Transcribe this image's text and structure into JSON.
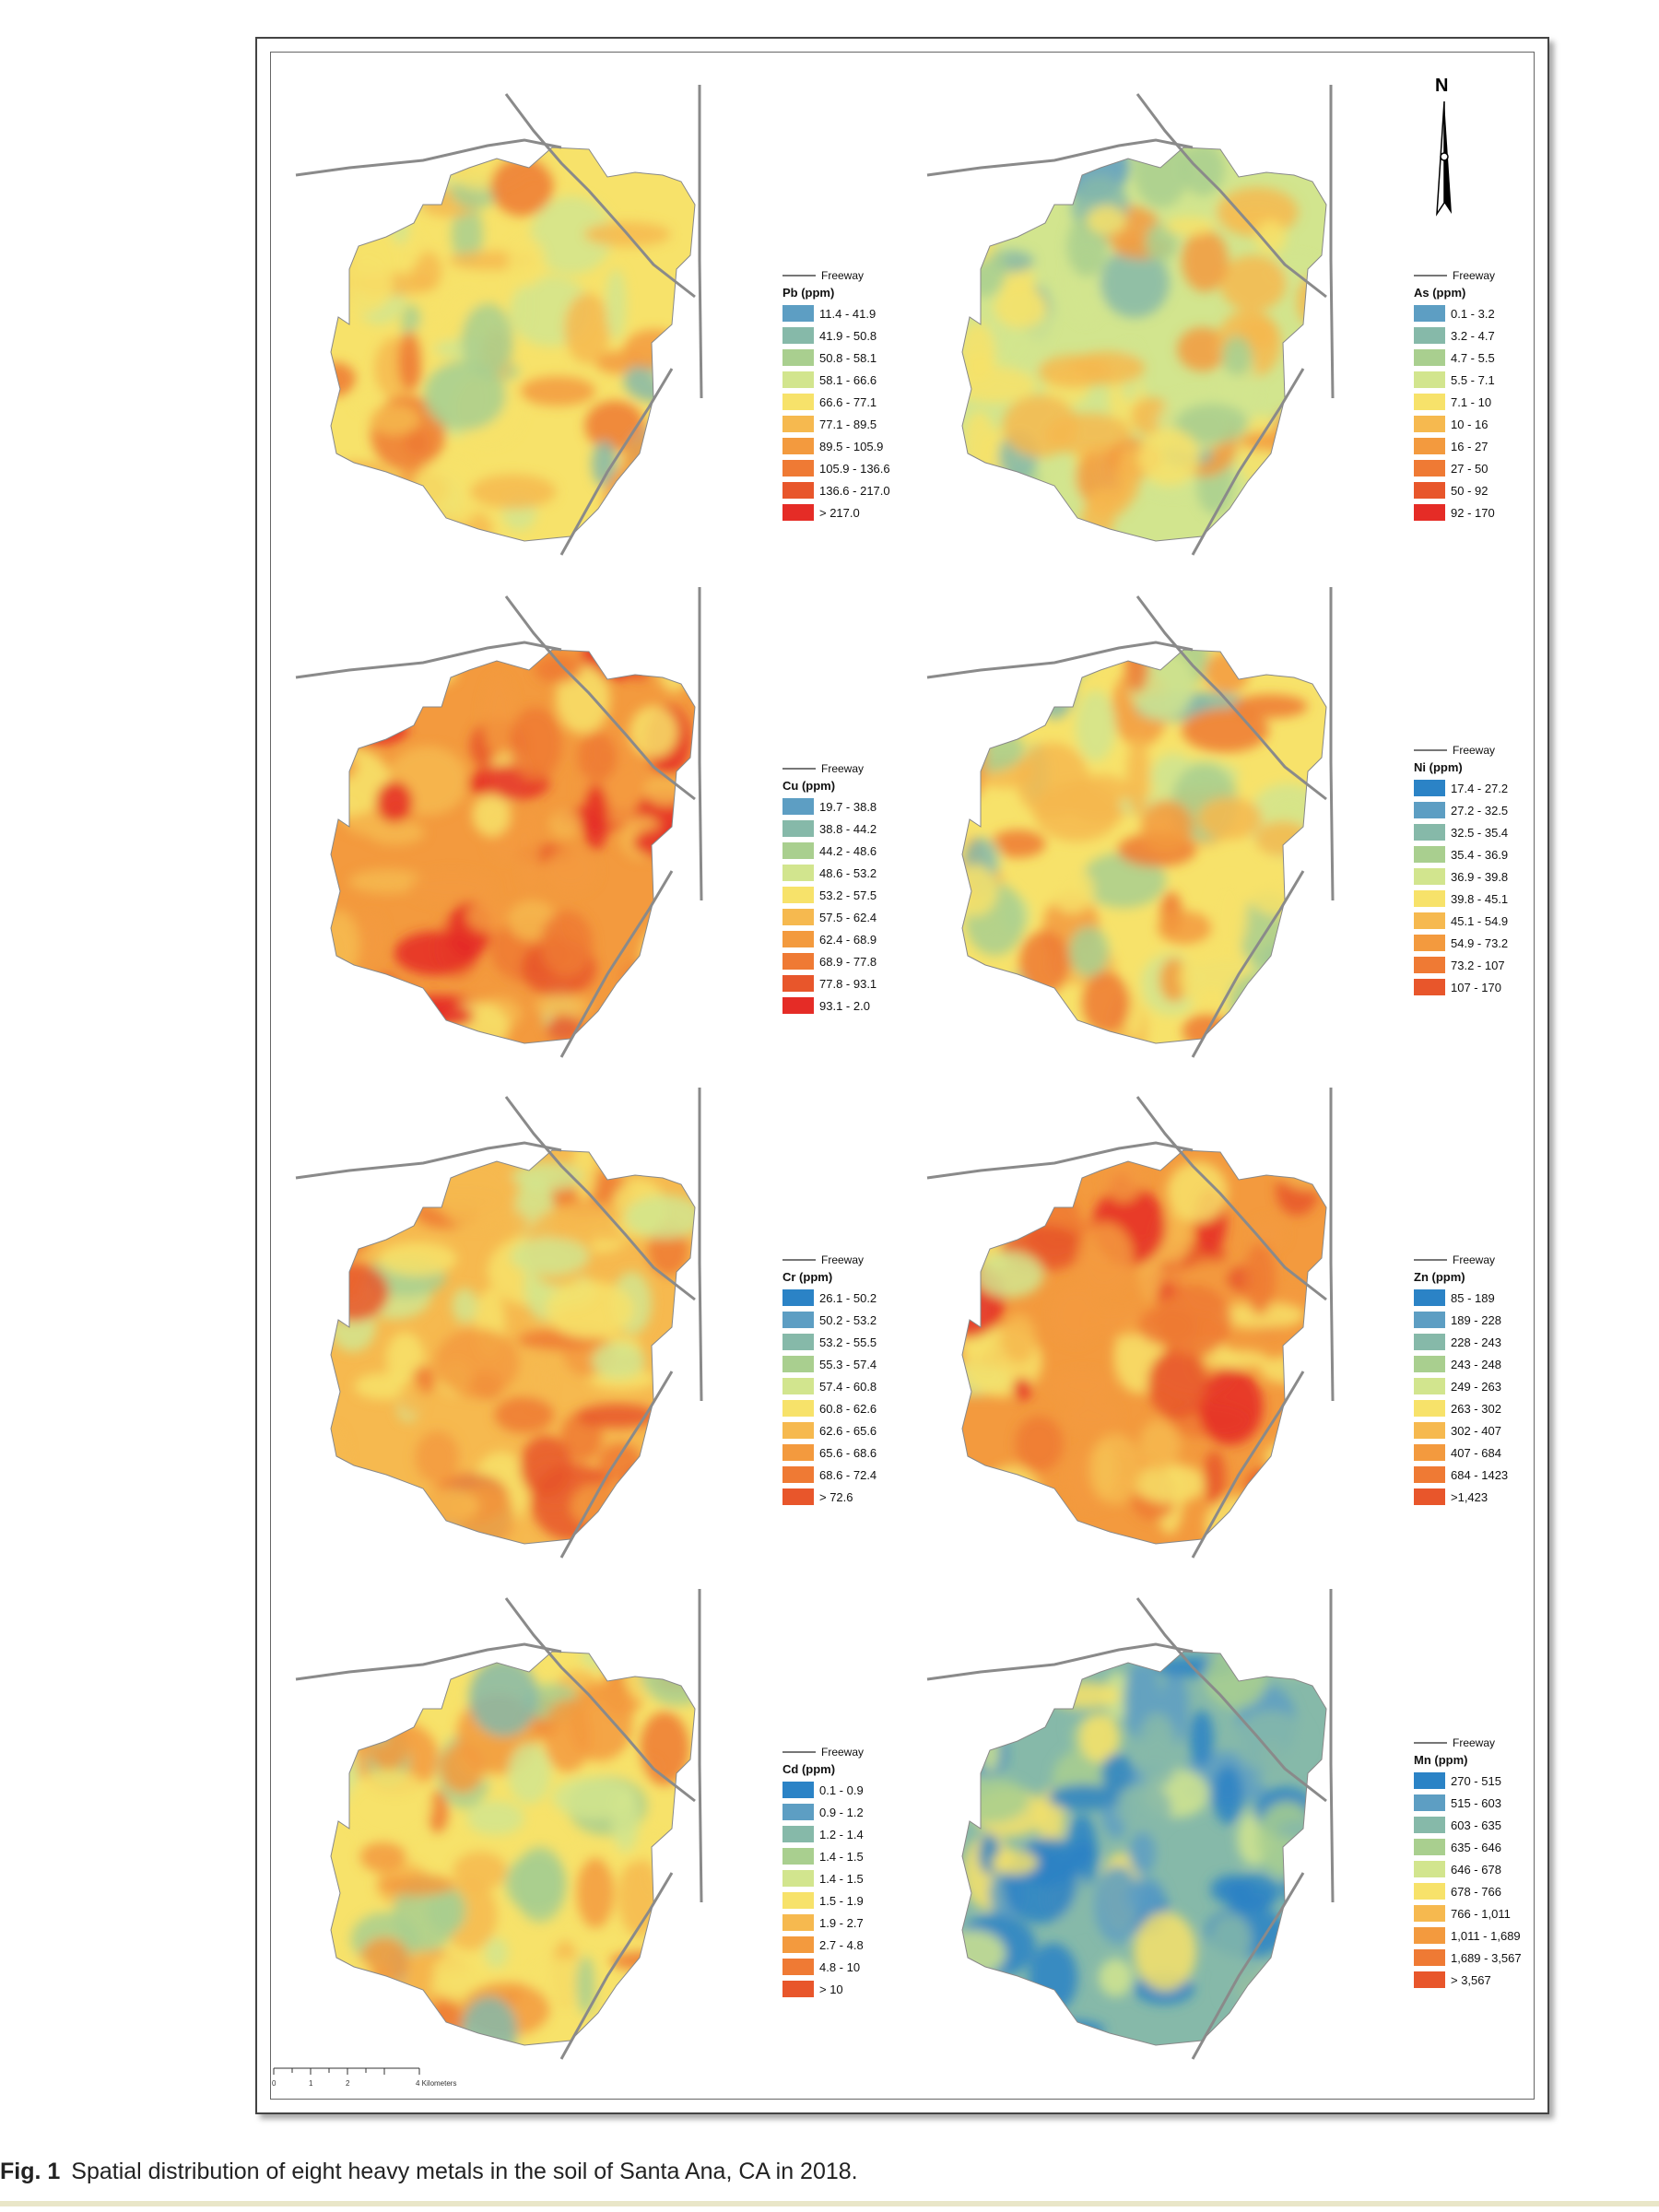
{
  "palette": [
    "#2b83c6",
    "#5d9ec3",
    "#86b9a9",
    "#a9cf8f",
    "#d2e58e",
    "#f7e26a",
    "#f6b94f",
    "#f39a3e",
    "#ef7a34",
    "#e8562b",
    "#e52c26"
  ],
  "freeway_label": "Freeway",
  "north_label": "N",
  "scale": {
    "ticks": [
      "0",
      "1",
      "2"
    ],
    "unit_label": "4 Kilometers"
  },
  "caption": {
    "fig": "Fig. 1",
    "text": "Spatial distribution of eight heavy metals in the soil of Santa Ana, CA in 2018."
  },
  "maps": [
    {
      "id": "pb",
      "title": "Pb (ppm)",
      "classes": [
        "11.4 - 41.9",
        "41.9 - 50.8",
        "50.8 - 58.1",
        "58.1 - 66.6",
        "66.6 - 77.1",
        "77.1 - 89.5",
        "89.5 - 105.9",
        "105.9 - 136.6",
        "136.6 - 217.0",
        "> 217.0"
      ],
      "base_class": 5,
      "class_offset": 1
    },
    {
      "id": "as",
      "title": "As (ppm)",
      "classes": [
        "0.1 - 3.2",
        "3.2 - 4.7",
        "4.7 - 5.5",
        "5.5 - 7.1",
        "7.1 - 10",
        "10 - 16",
        "16 - 27",
        "27 - 50",
        "50 - 92",
        "92 - 170"
      ],
      "base_class": 4,
      "class_offset": 1
    },
    {
      "id": "cu",
      "title": "Cu (ppm)",
      "classes": [
        "19.7 - 38.8",
        "38.8 - 44.2",
        "44.2 - 48.6",
        "48.6 - 53.2",
        "53.2 - 57.5",
        "57.5 - 62.4",
        "62.4 - 68.9",
        "68.9 - 77.8",
        "77.8 - 93.1",
        "93.1 - 2.0"
      ],
      "base_class": 7,
      "class_offset": 1
    },
    {
      "id": "ni",
      "title": "Ni (ppm)",
      "classes": [
        "17.4 - 27.2",
        "27.2 - 32.5",
        "32.5 - 35.4",
        "35.4 - 36.9",
        "36.9 - 39.8",
        "39.8 - 45.1",
        "45.1 - 54.9",
        "54.9 - 73.2",
        "73.2 - 107",
        "107 - 170"
      ],
      "base_class": 5,
      "class_offset": 0
    },
    {
      "id": "cr",
      "title": "Cr (ppm)",
      "classes": [
        "26.1 - 50.2",
        "50.2 - 53.2",
        "53.2 - 55.5",
        "55.3 - 57.4",
        "57.4 - 60.8",
        "60.8 - 62.6",
        "62.6 - 65.6",
        "65.6 - 68.6",
        "68.6 - 72.4",
        "> 72.6"
      ],
      "base_class": 6,
      "class_offset": 0
    },
    {
      "id": "zn",
      "title": "Zn (ppm)",
      "classes": [
        "85 - 189",
        "189 - 228",
        "228 - 243",
        "243 - 248",
        "249 - 263",
        "263 - 302",
        "302 - 407",
        "407 - 684",
        "684 - 1423",
        ">1,423"
      ],
      "base_class": 7,
      "class_offset": 0
    },
    {
      "id": "cd",
      "title": "Cd (ppm)",
      "classes": [
        "0.1 - 0.9",
        "0.9 - 1.2",
        "1.2 - 1.4",
        "1.4 - 1.5",
        "1.4 - 1.5",
        "1.5 - 1.9",
        "1.9 - 2.7",
        "2.7 - 4.8",
        "4.8 - 10",
        "> 10"
      ],
      "base_class": 5,
      "class_offset": 0
    },
    {
      "id": "mn",
      "title": "Mn (ppm)",
      "classes": [
        "270 - 515",
        "515 - 603",
        "603 - 635",
        "635 - 646",
        "646 - 678",
        "678 - 766",
        "766 - 1,011",
        "1,011 - 1,689",
        "1,689 - 3,567",
        "> 3,567"
      ],
      "base_class": 2,
      "class_offset": 0
    }
  ]
}
